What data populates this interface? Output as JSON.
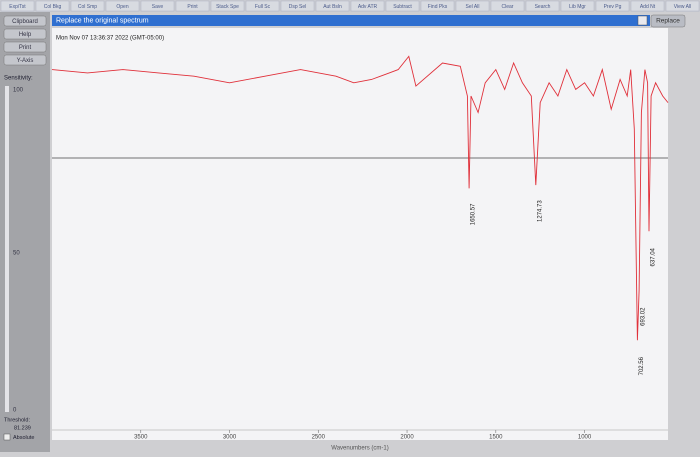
{
  "toolbar": [
    "Exp/Tst",
    "Col Bkg",
    "Col Smp",
    "Open",
    "Save",
    "Print",
    "Stack Spe",
    "Full Sc",
    "Dsp Sel",
    "Aut Bsln",
    "Adv ATR",
    "Subtract",
    "Find Pks",
    "Sel All",
    "Clear",
    "Search",
    "Lib Mgr",
    "Prev Pg",
    "Add Nt",
    "View All"
  ],
  "title_bar": {
    "text": "Replace the original spectrum",
    "button": "Replace"
  },
  "side_panel": {
    "buttons": [
      "Clipboard",
      "Help",
      "Print",
      "Y-Axis"
    ],
    "sensitivity_label": "Sensitivity:",
    "slider_labels": [
      "100",
      "50",
      "0"
    ],
    "threshold_label": "Threshold:",
    "threshold_value": "81.239",
    "mode": "Absolute"
  },
  "chart_data": {
    "type": "line",
    "title": "Mon Nov 07 13:36:37 2022 (GMT-05:00)",
    "x_label": "Wavenumbers (cm-1)",
    "x": [
      4000,
      3800,
      3600,
      3400,
      3200,
      3000,
      2800,
      2600,
      2400,
      2300,
      2200,
      2100,
      2050,
      1990,
      1950,
      1800,
      1700,
      1660,
      1650.57,
      1640,
      1600,
      1560,
      1500,
      1450,
      1400,
      1350,
      1300,
      1274.73,
      1250,
      1200,
      1150,
      1100,
      1050,
      1000,
      950,
      900,
      850,
      800,
      760,
      740,
      720,
      702.56,
      693.02,
      680,
      660,
      645,
      637.04,
      625,
      600,
      560,
      530
    ],
    "values": [
      108,
      107,
      108,
      107,
      106,
      104,
      106,
      108,
      106,
      104,
      105,
      107,
      108,
      112,
      103,
      110,
      109,
      100,
      72,
      100,
      95,
      104,
      108,
      102,
      110,
      104,
      100,
      73,
      98,
      104,
      100,
      108,
      102,
      104,
      100,
      108,
      96,
      105,
      100,
      108,
      90,
      26,
      41,
      95,
      108,
      104,
      59,
      100,
      104,
      100,
      98
    ],
    "color": "#e0303a",
    "xlim": [
      4000,
      530
    ],
    "ylim": [
      0,
      120
    ],
    "xticks": [
      3500,
      3000,
      2500,
      2000,
      1500,
      1000
    ],
    "peak_labels": [
      1650.57,
      1274.73,
      702.56,
      693.02,
      637.04
    ]
  }
}
